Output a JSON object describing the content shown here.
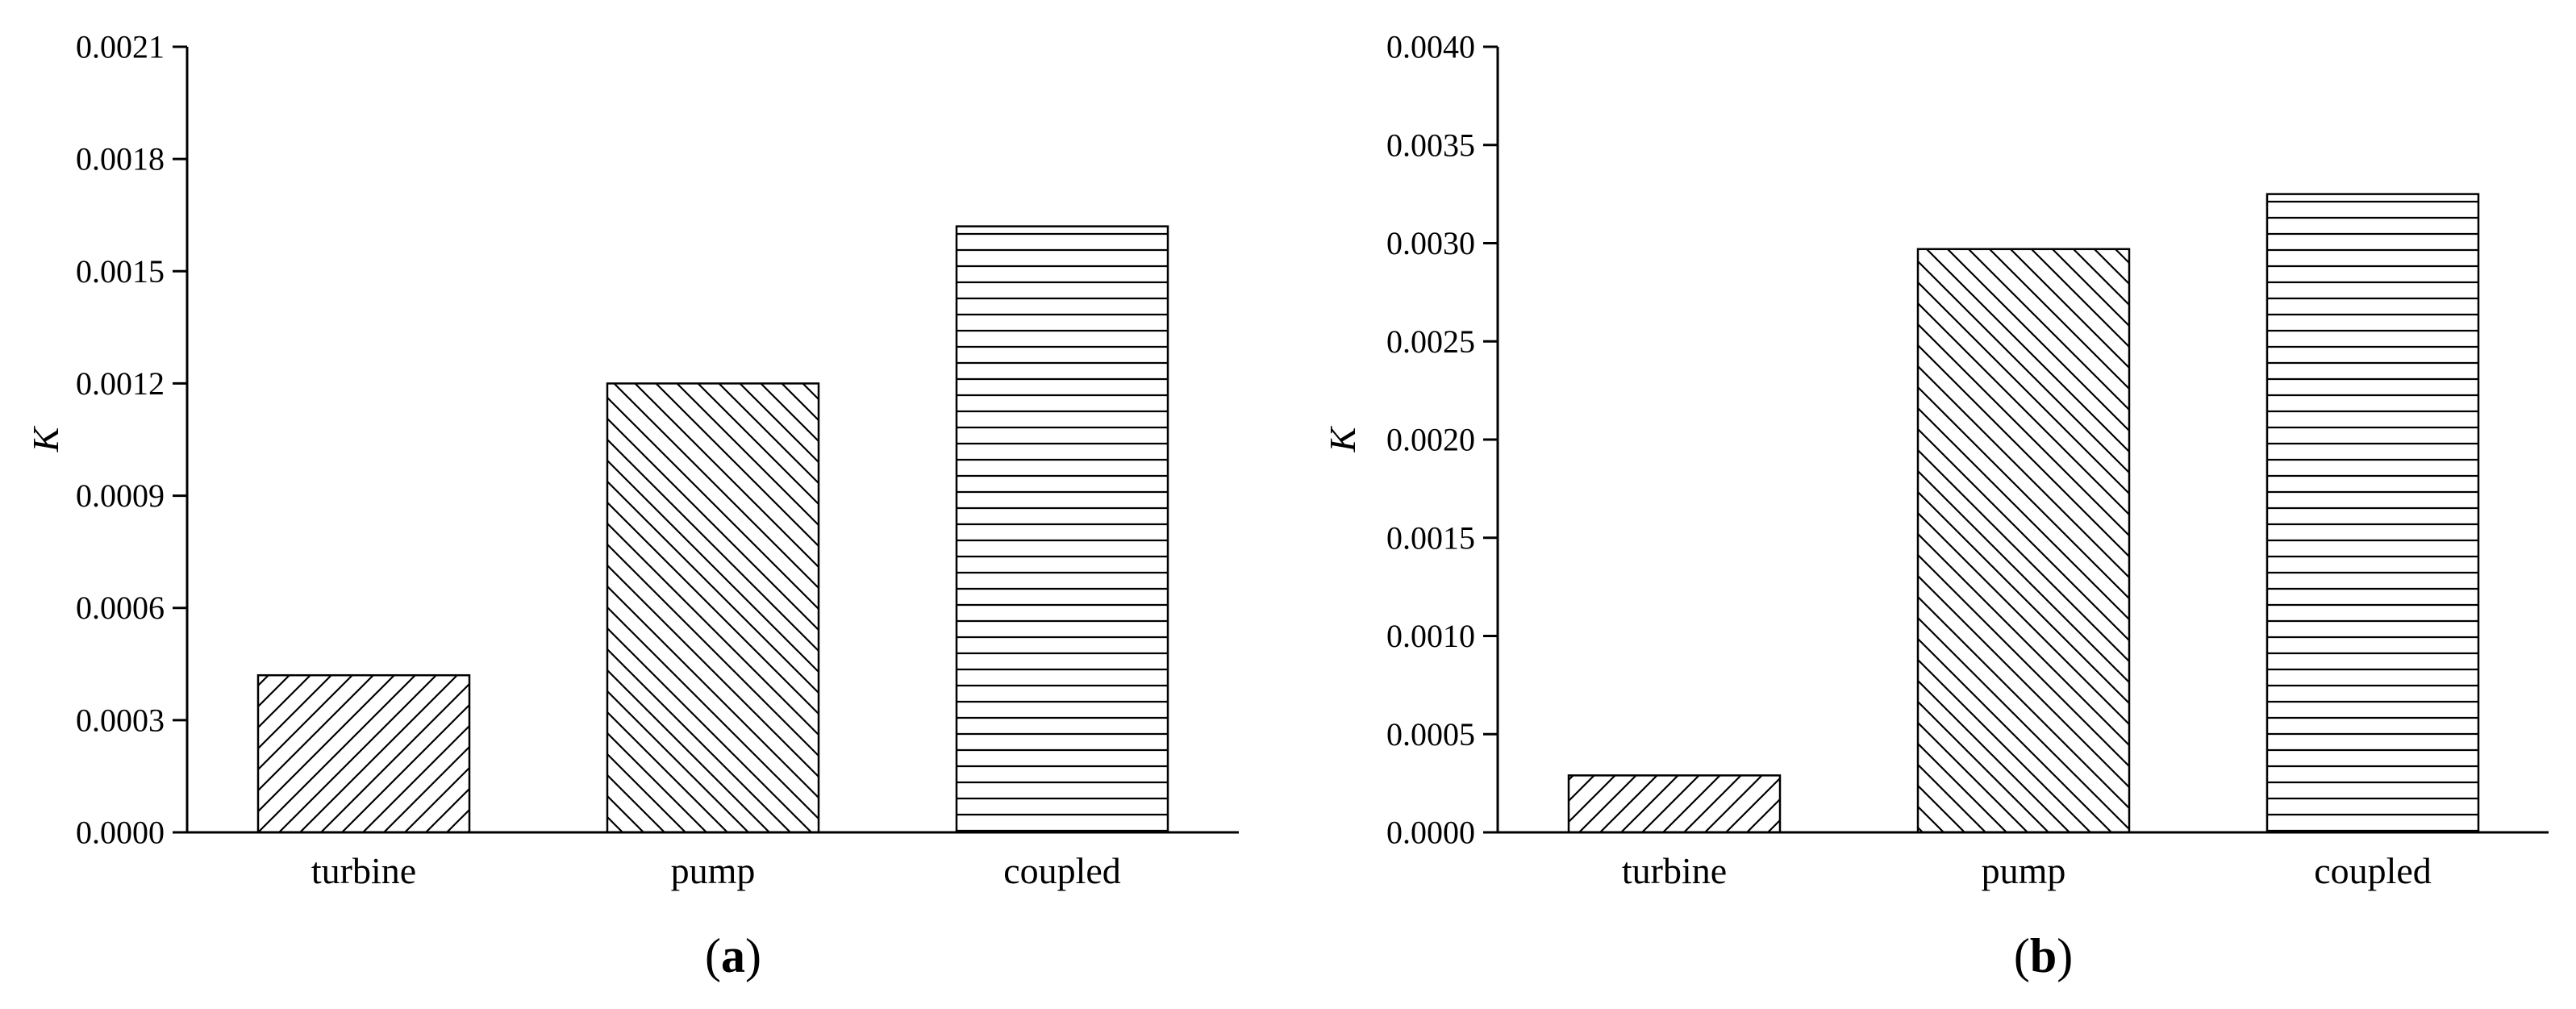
{
  "chart_data": [
    {
      "type": "bar",
      "panel_label": "a",
      "categories": [
        "turbine",
        "pump",
        "coupled"
      ],
      "values": [
        0.00042,
        0.0012,
        0.00162
      ],
      "patterns": [
        "diagonal-forward",
        "diagonal-backward",
        "horizontal"
      ],
      "title": "",
      "xlabel": "",
      "ylabel": "K",
      "ylim": [
        0,
        0.0021
      ],
      "yticks": [
        "0.0000",
        "0.0003",
        "0.0006",
        "0.0009",
        "0.0012",
        "0.0015",
        "0.0018",
        "0.0021"
      ],
      "grid": false
    },
    {
      "type": "bar",
      "panel_label": "b",
      "categories": [
        "turbine",
        "pump",
        "coupled"
      ],
      "values": [
        0.00029,
        0.00297,
        0.00325
      ],
      "patterns": [
        "diagonal-forward",
        "diagonal-backward",
        "horizontal"
      ],
      "title": "",
      "xlabel": "",
      "ylabel": "K",
      "ylim": [
        0,
        0.004
      ],
      "yticks": [
        "0.0000",
        "0.0005",
        "0.0010",
        "0.0015",
        "0.0020",
        "0.0025",
        "0.0030",
        "0.0035",
        "0.0040"
      ],
      "grid": false
    }
  ]
}
